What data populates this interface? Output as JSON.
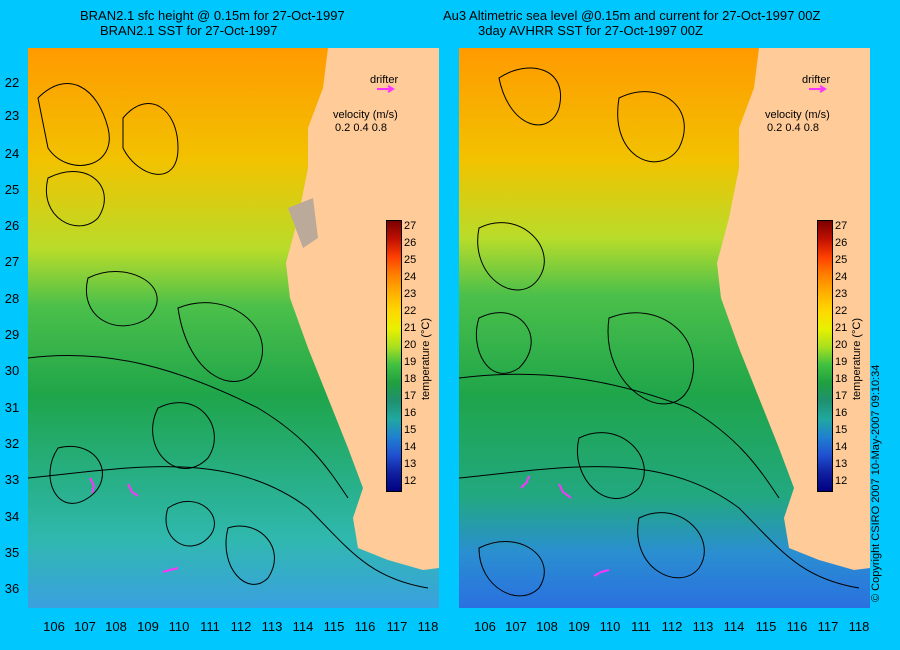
{
  "left_panel": {
    "title_line1": "BRAN2.1 sfc height @ 0.15m for 27-Oct-1997",
    "title_line2": "BRAN2.1 SST for 27-Oct-1997"
  },
  "right_panel": {
    "title_line1": "Au3 Altimetric sea level  @0.15m and current for 27-Oct-1997 00Z",
    "title_line2": "3day AVHRR SST for 27-Oct-1997 00Z"
  },
  "map": {
    "lat_ticks": [
      "22",
      "23",
      "24",
      "25",
      "26",
      "27",
      "28",
      "29",
      "30",
      "31",
      "32",
      "33",
      "34",
      "35",
      "36"
    ],
    "lon_ticks": [
      "106",
      "107",
      "108",
      "109",
      "110",
      "111",
      "112",
      "113",
      "114",
      "115",
      "116",
      "117",
      "118"
    ],
    "drifter_label": "drifter",
    "velocity_label": "velocity (m/s)",
    "velocity_values": "0.2  0.4  0.8",
    "colorbar_ticks": [
      "27",
      "26",
      "25",
      "24",
      "23",
      "22",
      "21",
      "20",
      "19",
      "18",
      "17",
      "16",
      "15",
      "14",
      "13",
      "12"
    ],
    "colorbar_title": "temperature (°C)",
    "land_color": "#ffcc99",
    "drifter_color": "#ff33ff"
  },
  "copyright": "© Copyright CSIRO 2007   10-May-2007 09:10:34"
}
